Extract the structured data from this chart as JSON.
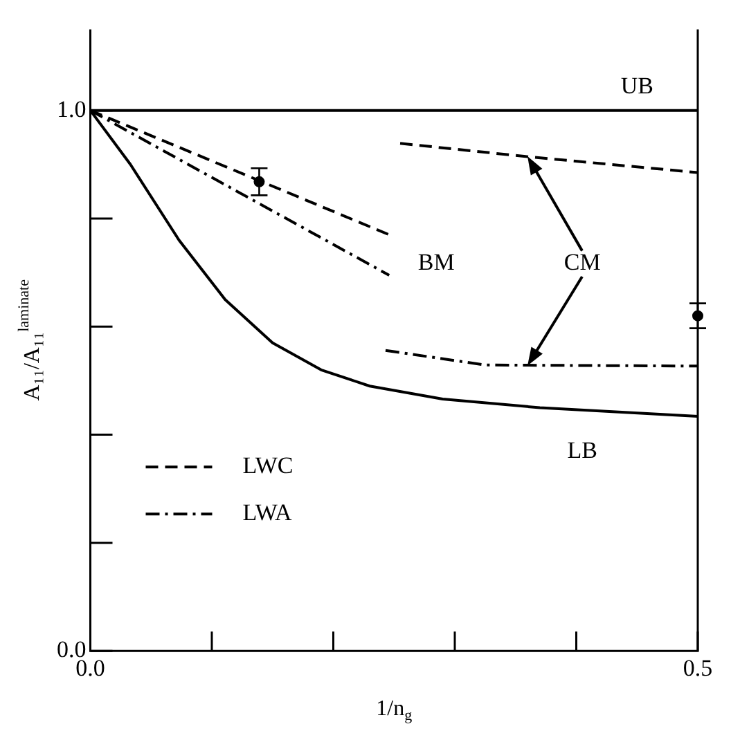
{
  "chart_data": {
    "type": "line",
    "xlabel": "1/n$_{g}$",
    "ylabel": "A₁₁/A₁₁$^{laminate}$",
    "xlim": [
      0,
      0.5
    ],
    "ylim": [
      0,
      1.15
    ],
    "xticks": [
      {
        "value": 0,
        "label": "0.0"
      },
      {
        "value": 0.1,
        "label": null
      },
      {
        "value": 0.2,
        "label": null
      },
      {
        "value": 0.3,
        "label": null
      },
      {
        "value": 0.4,
        "label": null
      },
      {
        "value": 0.5,
        "label": "0.5"
      }
    ],
    "yticks": [
      {
        "value": 0,
        "label": "0.0"
      },
      {
        "value": 0.2,
        "label": null
      },
      {
        "value": 0.4,
        "label": null
      },
      {
        "value": 0.6,
        "label": null
      },
      {
        "value": 0.8,
        "label": null
      },
      {
        "value": 1,
        "label": "1.0"
      }
    ],
    "grid": false,
    "legend": "bottom left",
    "marker": "none",
    "series": [
      {
        "name": "UB",
        "color": "#000000",
        "line_style": "solid",
        "x": [
          0,
          0.5
        ],
        "values": [
          1,
          1
        ]
      },
      {
        "name": "LB",
        "color": "#000000",
        "line_style": "solid",
        "x": [
          0,
          0.033,
          0.073,
          0.111,
          0.15,
          0.19,
          0.23,
          0.29,
          0.37,
          0.5
        ],
        "values": [
          1,
          0.9,
          0.76,
          0.65,
          0.57,
          0.52,
          0.49,
          0.466,
          0.45,
          0.434
        ]
      },
      {
        "name": "LWC",
        "color": "#000000",
        "line_style": "dashed",
        "x": [
          0,
          0.246
        ],
        "values": [
          1,
          0.77
        ]
      },
      {
        "name": "LWA",
        "color": "#000000",
        "line_style": "dashdot",
        "x": [
          0,
          0.246
        ],
        "values": [
          1,
          0.695
        ]
      },
      {
        "color": "#000000",
        "line_style": "dashed",
        "x": [
          0.255,
          0.357,
          0.5
        ],
        "values": [
          0.939,
          0.915,
          0.885
        ]
      },
      {
        "color": "#000000",
        "line_style": "dashdot",
        "x": [
          0.243,
          0.325,
          0.5
        ],
        "values": [
          0.556,
          0.529,
          0.527
        ]
      },
      {
        "type": "scatter",
        "color": "#000000",
        "marker": "circle",
        "x": [
          0.139,
          0.5
        ],
        "values": [
          0.868,
          0.62
        ],
        "errors": [
          0.025,
          0.023
        ]
      }
    ],
    "annotations": [
      "BM",
      "CM"
    ]
  }
}
